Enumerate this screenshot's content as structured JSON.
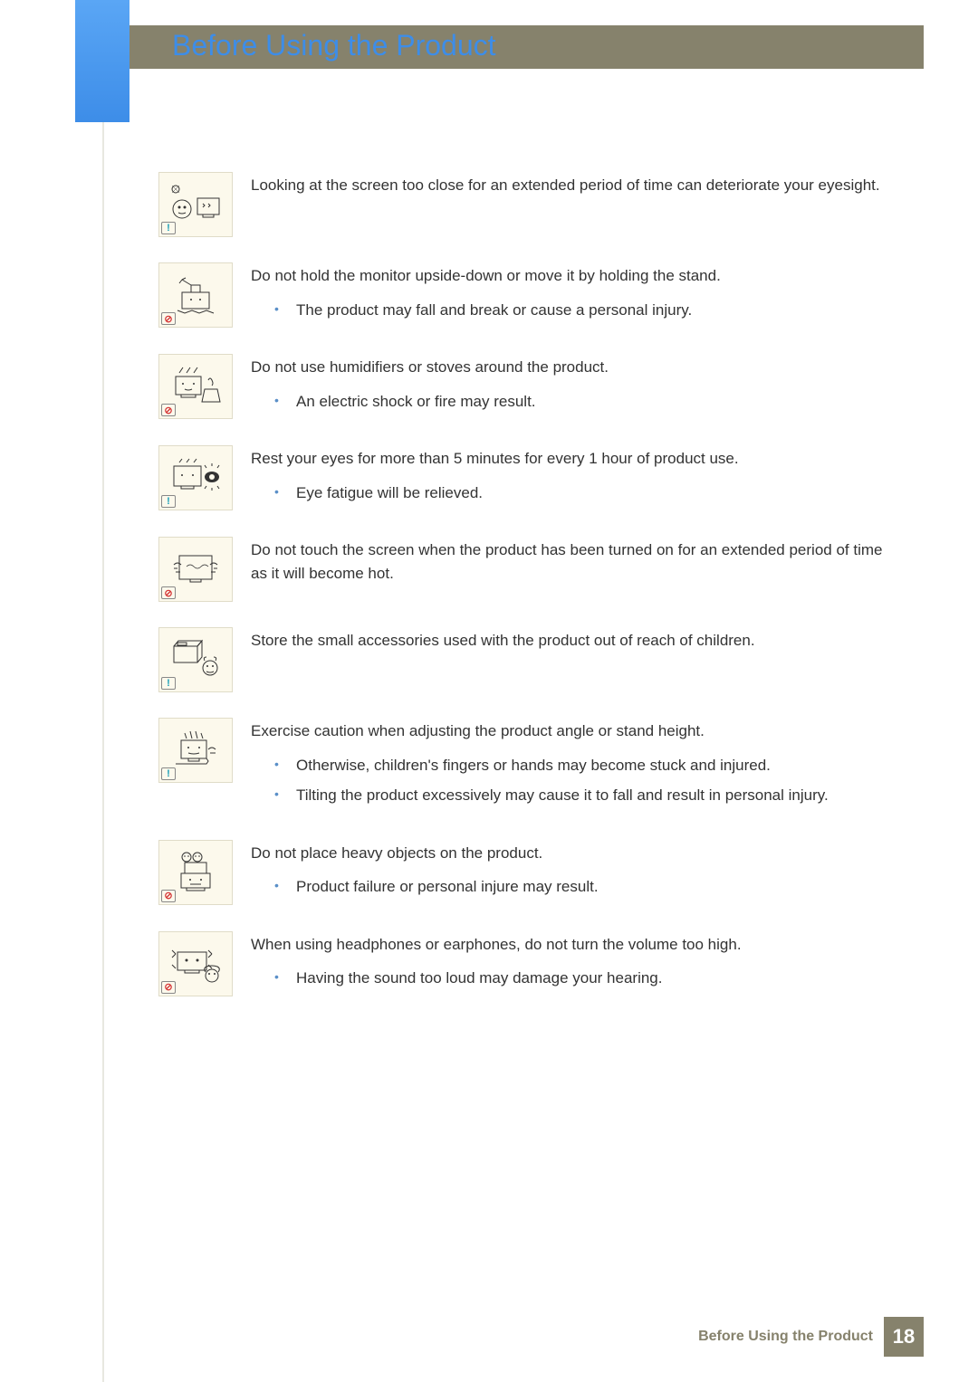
{
  "page": {
    "title": "Before Using the Product",
    "footer_label": "Before Using the Product",
    "page_number": "18"
  },
  "colors": {
    "title": "#3d8de8",
    "banner": "#86826c",
    "blue_tab_top": "#5aa6f5",
    "blue_tab_bottom": "#3d8de8",
    "icon_bg": "#fcf9ec",
    "bullet": "#5a8fc8",
    "info_badge": "#1a9fb8",
    "prohibit_badge": "#d63838"
  },
  "items": [
    {
      "badge": "info",
      "icon": "eyes-close",
      "main": "Looking at the screen too close for an extended period of time can deteriorate your eyesight.",
      "subs": []
    },
    {
      "badge": "prohibit",
      "icon": "upside-down",
      "main": "Do not hold the monitor upside-down or move it by holding the stand.",
      "subs": [
        "The product may fall and break or cause a personal injury."
      ]
    },
    {
      "badge": "prohibit",
      "icon": "humidifier",
      "main": "Do not use humidifiers or stoves around the product.",
      "subs": [
        "An electric shock or fire may result."
      ]
    },
    {
      "badge": "info",
      "icon": "rest-eyes",
      "main": "Rest your eyes for more than 5 minutes for every 1 hour of product use.",
      "subs": [
        "Eye fatigue will be relieved."
      ]
    },
    {
      "badge": "prohibit",
      "icon": "hot-screen",
      "main": "Do not touch the screen when the product has been turned on for an extended period of time as it will become hot.",
      "subs": []
    },
    {
      "badge": "info",
      "icon": "small-parts",
      "main": "Store the small accessories used with the product out of reach of children.",
      "subs": []
    },
    {
      "badge": "info",
      "icon": "adjust-angle",
      "main": "Exercise caution when adjusting the product angle or stand height.",
      "subs": [
        "Otherwise, children's fingers or hands may become stuck and injured.",
        "Tilting the product excessively may cause it to fall and result in personal injury."
      ]
    },
    {
      "badge": "prohibit",
      "icon": "heavy-object",
      "main": "Do not place heavy objects on the product.",
      "subs": [
        "Product failure or personal injure may result."
      ]
    },
    {
      "badge": "prohibit",
      "icon": "headphones",
      "main": "When using headphones or earphones, do not turn the volume too high.",
      "subs": [
        "Having the sound too loud may damage your hearing."
      ]
    }
  ]
}
